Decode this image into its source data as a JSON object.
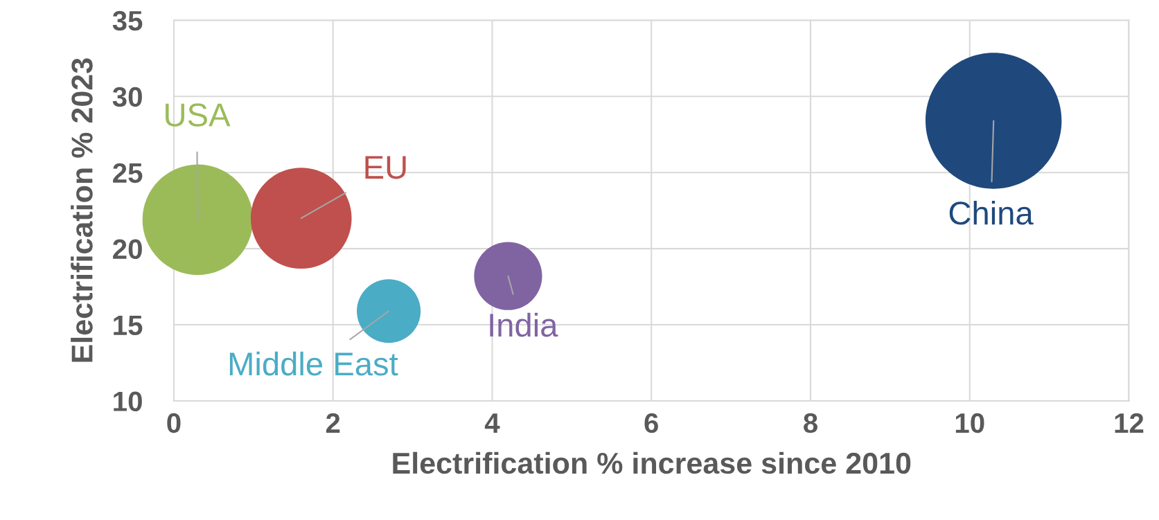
{
  "chart_data": {
    "type": "bubble",
    "xlabel": "Electrification % increase since 2010",
    "ylabel": "Electrification % 2023",
    "xlim": [
      0,
      12
    ],
    "xticks": [
      0,
      2,
      4,
      6,
      8,
      10,
      12
    ],
    "ylim": [
      10,
      35
    ],
    "yticks": [
      10,
      15,
      20,
      25,
      30,
      35
    ],
    "grid": true,
    "series": [
      {
        "name": "USA",
        "color": "#9bbb59",
        "x": [
          0.3
        ],
        "values": [
          21.9
        ],
        "sizes": [
          0.66
        ]
      },
      {
        "name": "EU",
        "color": "#c0504d",
        "x": [
          1.6
        ],
        "values": [
          22.0
        ],
        "sizes": [
          0.55
        ]
      },
      {
        "name": "Middle East",
        "color": "#4bacc6",
        "x": [
          2.7
        ],
        "values": [
          15.9
        ],
        "sizes": [
          0.22
        ]
      },
      {
        "name": "India",
        "color": "#8064a2",
        "x": [
          4.2
        ],
        "values": [
          18.2
        ],
        "sizes": [
          0.25
        ]
      },
      {
        "name": "China",
        "color": "#1f497d",
        "x": [
          10.3
        ],
        "values": [
          28.4
        ],
        "sizes": [
          1.0
        ]
      }
    ]
  }
}
